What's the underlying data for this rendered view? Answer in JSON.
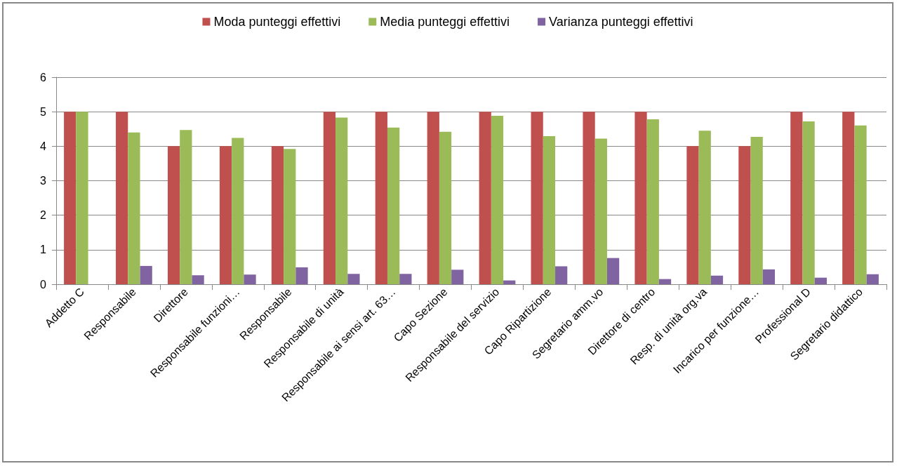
{
  "chart_data": {
    "type": "bar",
    "categories": [
      "Addetto C",
      "Responsabile",
      "Direttore",
      "Responsabile funzioni…",
      "Responsabile",
      "Responsabile di unità",
      "Responsabile ai sensi art. 63…",
      "Capo Sezione",
      "Responsabile del servizio",
      "Capo Ripartizione",
      "Segretario amm.vo",
      "Direttore di centro",
      "Resp. di unità org.va",
      "Incarico per funzione…",
      "Professional D",
      "Segretario didattico"
    ],
    "series": [
      {
        "name": "Moda punteggi effettivi",
        "color": "#c0504d",
        "values": [
          5,
          5,
          4,
          4,
          4,
          5,
          5,
          5,
          5,
          5,
          5,
          5,
          4,
          4,
          5,
          5
        ]
      },
      {
        "name": "Media punteggi effettivi",
        "color": "#9bbb59",
        "values": [
          5,
          4.4,
          4.47,
          4.24,
          3.92,
          4.83,
          4.54,
          4.42,
          4.88,
          4.29,
          4.22,
          4.78,
          4.45,
          4.27,
          4.72,
          4.6
        ]
      },
      {
        "name": "Varianza punteggi effettivi",
        "color": "#8064a2",
        "values": [
          0,
          0.53,
          0.26,
          0.28,
          0.49,
          0.3,
          0.3,
          0.42,
          0.11,
          0.52,
          0.76,
          0.15,
          0.25,
          0.43,
          0.19,
          0.29
        ]
      }
    ],
    "ylim": [
      0,
      6
    ],
    "yticks": [
      0,
      1,
      2,
      3,
      4,
      5,
      6
    ],
    "grid": "y",
    "legend": "top"
  }
}
